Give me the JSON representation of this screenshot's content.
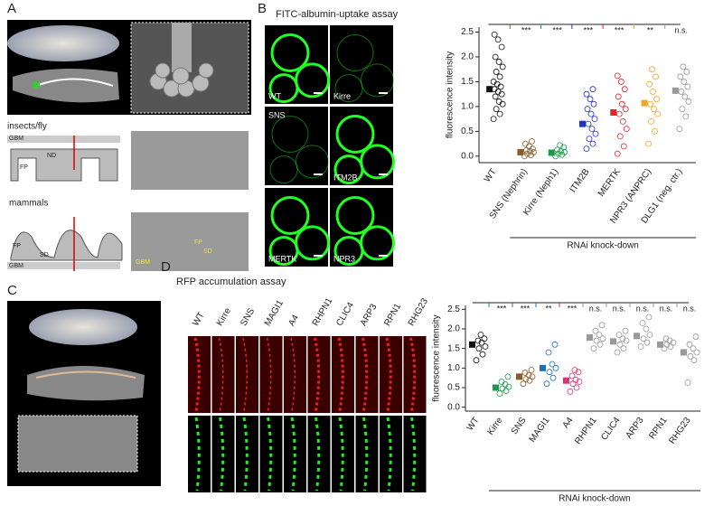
{
  "panels": {
    "a": "A",
    "b": "B",
    "c": "C",
    "d": "D"
  },
  "fitc": {
    "title": "FITC-albumin-uptake assay",
    "labels": [
      "WT",
      "Kirre",
      "SNS",
      "ITM2B",
      "MERTK",
      "NPR3"
    ]
  },
  "schematic": {
    "fly": "insects/fly",
    "mammals": "mammals",
    "gbm": "GBM",
    "nd": "ND",
    "fp": "FP",
    "sd": "SD"
  },
  "rfp": {
    "title": "RFP accumulation assay",
    "labels": [
      "WT",
      "Kirre",
      "SNS",
      "MAGI1",
      "A4",
      "RHPN1",
      "CLIC4",
      "ARP3",
      "RPN1",
      "RHG23"
    ]
  },
  "chart_data": [
    {
      "type": "dotplot",
      "ylabel": "fluorescence intensity",
      "xlabel": "RNAi knock-down",
      "categories": [
        "WT",
        "SNS (Nephrin)",
        "Kirre (Neph1)",
        "ITM2B",
        "MERTK",
        "NPR3 (ANPRC)",
        "DLG1 (neg. ctr.)"
      ],
      "values": [
        1.35,
        0.08,
        0.07,
        0.65,
        0.88,
        1.07,
        1.32
      ],
      "colors": [
        "#111111",
        "#8b5a2b",
        "#1a9a4a",
        "#2233cc",
        "#e8202a",
        "#f5a623",
        "#999999"
      ],
      "significance": [
        "***",
        "***",
        "***",
        "***",
        "**",
        "n.s."
      ],
      "points": [
        [
          0.75,
          0.85,
          0.95,
          1.05,
          1.1,
          1.2,
          1.25,
          1.3,
          1.35,
          1.4,
          1.45,
          1.5,
          1.6,
          1.7,
          1.8,
          1.9,
          2.0,
          2.2,
          2.35,
          2.45
        ],
        [
          0.0,
          0.02,
          0.05,
          0.08,
          0.1,
          0.12,
          0.15,
          0.2,
          0.25,
          0.3
        ],
        [
          0.0,
          0.03,
          0.05,
          0.08,
          0.1,
          0.13,
          0.18,
          0.22
        ],
        [
          0.15,
          0.25,
          0.35,
          0.45,
          0.55,
          0.65,
          0.75,
          0.85,
          0.95,
          1.05,
          1.15,
          1.25,
          1.35
        ],
        [
          0.05,
          0.2,
          0.4,
          0.55,
          0.7,
          0.85,
          0.95,
          1.05,
          1.2,
          1.35,
          1.5,
          1.62
        ],
        [
          0.25,
          0.5,
          0.7,
          0.85,
          0.95,
          1.05,
          1.15,
          1.3,
          1.45,
          1.6,
          1.75
        ],
        [
          0.55,
          0.8,
          0.95,
          1.1,
          1.2,
          1.3,
          1.4,
          1.5,
          1.6,
          1.7,
          1.8
        ]
      ],
      "ylim": [
        -0.13,
        2.6
      ],
      "yticks": [
        {
          "value": 0,
          "label": "0.0"
        },
        0.5,
        {
          "value": 1,
          "label": "1.0"
        },
        1.5,
        {
          "value": 2,
          "label": "2.0"
        },
        2.5
      ]
    },
    {
      "type": "dotplot",
      "ylabel": "fluorescence intensity",
      "xlabel": "RNAi knock-down",
      "categories": [
        "WT",
        "Kirre",
        "SNS",
        "MAGI1",
        "A4",
        "RHPN1",
        "CLIC4",
        "ARP3",
        "RPN1",
        "RHG23"
      ],
      "values": [
        1.6,
        0.5,
        0.78,
        1.0,
        0.68,
        1.78,
        1.68,
        1.82,
        1.6,
        1.4
      ],
      "colors": [
        "#111111",
        "#1a9a4a",
        "#8b5a2b",
        "#1f6fb5",
        "#e0307a",
        "#999999",
        "#999999",
        "#999999",
        "#999999",
        "#999999"
      ],
      "significance": [
        "***",
        "***",
        "**",
        "***",
        "n.s.",
        "n.s.",
        "n.s.",
        "n.s.",
        "n.s."
      ],
      "points": [
        [
          1.2,
          1.35,
          1.5,
          1.55,
          1.65,
          1.7,
          1.75,
          1.85
        ],
        [
          0.35,
          0.42,
          0.48,
          0.52,
          0.58,
          0.65,
          0.78
        ],
        [
          0.6,
          0.68,
          0.72,
          0.78,
          0.82,
          0.88,
          0.95
        ],
        [
          0.6,
          0.75,
          0.9,
          1.0,
          1.1,
          1.4,
          1.6
        ],
        [
          0.4,
          0.5,
          0.6,
          0.65,
          0.7,
          0.8,
          0.9,
          0.95
        ],
        [
          1.5,
          1.6,
          1.7,
          1.75,
          1.85,
          1.95,
          2.1
        ],
        [
          1.4,
          1.5,
          1.6,
          1.7,
          1.75,
          1.85,
          1.95
        ],
        [
          1.55,
          1.65,
          1.75,
          1.85,
          2.0,
          2.15,
          2.3
        ],
        [
          1.5,
          1.55,
          1.6,
          1.65,
          1.7,
          1.75
        ],
        [
          0.63,
          1.2,
          1.3,
          1.4,
          1.5,
          1.6,
          1.8
        ]
      ],
      "ylim": [
        -0.1,
        2.6
      ],
      "yticks": [
        {
          "value": 0,
          "label": "0.0"
        },
        0.5,
        {
          "value": 1,
          "label": "1.0"
        },
        1.5,
        {
          "value": 2,
          "label": "2.0"
        },
        2.5
      ]
    }
  ]
}
